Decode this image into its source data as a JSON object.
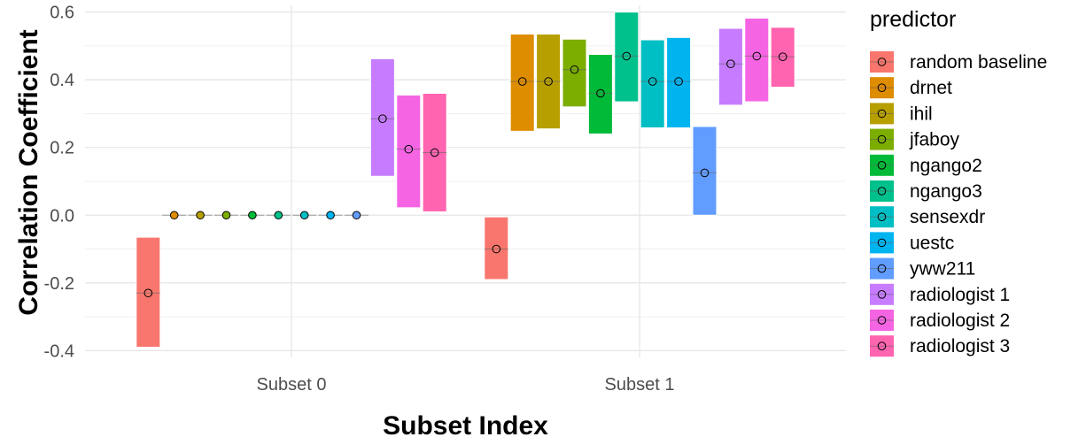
{
  "chart_data": {
    "type": "crossbar",
    "xlabel": "Subset Index",
    "ylabel": "Correlation Coefficient",
    "ylim": [
      -0.42,
      0.62
    ],
    "yticks": [
      -0.4,
      -0.2,
      0.0,
      0.2,
      0.4,
      0.6
    ],
    "ytick_labels": [
      "-0.4",
      "-0.2",
      "0.0",
      "0.2",
      "0.4",
      "0.6"
    ],
    "categories": [
      "Subset 0",
      "Subset 1"
    ],
    "grid": true,
    "legend_title": "predictor",
    "legend_position": "right",
    "series": [
      {
        "name": "random baseline",
        "color": "#F8766D",
        "values": [
          {
            "subset": "Subset 0",
            "mean": -0.23,
            "lower": -0.39,
            "upper": -0.065
          },
          {
            "subset": "Subset 1",
            "mean": -0.1,
            "lower": -0.19,
            "upper": -0.005
          }
        ]
      },
      {
        "name": "drnet",
        "color": "#DE8C00",
        "values": [
          {
            "subset": "Subset 0",
            "mean": 0.0,
            "lower": 0.0,
            "upper": 0.0
          },
          {
            "subset": "Subset 1",
            "mean": 0.395,
            "lower": 0.248,
            "upper": 0.535
          }
        ]
      },
      {
        "name": "ihil",
        "color": "#B79F00",
        "values": [
          {
            "subset": "Subset 0",
            "mean": 0.0,
            "lower": 0.0,
            "upper": 0.0
          },
          {
            "subset": "Subset 1",
            "mean": 0.395,
            "lower": 0.255,
            "upper": 0.535
          }
        ]
      },
      {
        "name": "jfaboy",
        "color": "#7CAE00",
        "values": [
          {
            "subset": "Subset 0",
            "mean": 0.0,
            "lower": 0.0,
            "upper": 0.0
          },
          {
            "subset": "Subset 1",
            "mean": 0.43,
            "lower": 0.32,
            "upper": 0.52
          }
        ]
      },
      {
        "name": "ngango2",
        "color": "#00BA38",
        "values": [
          {
            "subset": "Subset 0",
            "mean": 0.0,
            "lower": 0.0,
            "upper": 0.0
          },
          {
            "subset": "Subset 1",
            "mean": 0.36,
            "lower": 0.24,
            "upper": 0.475
          }
        ]
      },
      {
        "name": "ngango3",
        "color": "#00C08B",
        "values": [
          {
            "subset": "Subset 0",
            "mean": 0.0,
            "lower": 0.0,
            "upper": 0.0
          },
          {
            "subset": "Subset 1",
            "mean": 0.47,
            "lower": 0.335,
            "upper": 0.6
          }
        ]
      },
      {
        "name": "sensexdr",
        "color": "#00BFC4",
        "values": [
          {
            "subset": "Subset 0",
            "mean": 0.0,
            "lower": 0.0,
            "upper": 0.0
          },
          {
            "subset": "Subset 1",
            "mean": 0.395,
            "lower": 0.258,
            "upper": 0.518
          }
        ]
      },
      {
        "name": "uestc",
        "color": "#00B4F0",
        "values": [
          {
            "subset": "Subset 0",
            "mean": 0.0,
            "lower": 0.0,
            "upper": 0.0
          },
          {
            "subset": "Subset 1",
            "mean": 0.395,
            "lower": 0.258,
            "upper": 0.525
          }
        ]
      },
      {
        "name": "yww211",
        "color": "#619CFF",
        "values": [
          {
            "subset": "Subset 0",
            "mean": 0.0,
            "lower": 0.0,
            "upper": 0.0
          },
          {
            "subset": "Subset 1",
            "mean": 0.125,
            "lower": 0.0,
            "upper": 0.262
          }
        ]
      },
      {
        "name": "radiologist 1",
        "color": "#C77CFF",
        "values": [
          {
            "subset": "Subset 0",
            "mean": 0.285,
            "lower": 0.115,
            "upper": 0.462
          },
          {
            "subset": "Subset 1",
            "mean": 0.447,
            "lower": 0.325,
            "upper": 0.552
          }
        ]
      },
      {
        "name": "radiologist 2",
        "color": "#F564E3",
        "values": [
          {
            "subset": "Subset 0",
            "mean": 0.195,
            "lower": 0.022,
            "upper": 0.355
          },
          {
            "subset": "Subset 1",
            "mean": 0.47,
            "lower": 0.335,
            "upper": 0.582
          }
        ]
      },
      {
        "name": "radiologist 3",
        "color": "#FF64B0",
        "values": [
          {
            "subset": "Subset 0",
            "mean": 0.185,
            "lower": 0.01,
            "upper": 0.36
          },
          {
            "subset": "Subset 1",
            "mean": 0.468,
            "lower": 0.378,
            "upper": 0.555
          }
        ]
      }
    ]
  }
}
